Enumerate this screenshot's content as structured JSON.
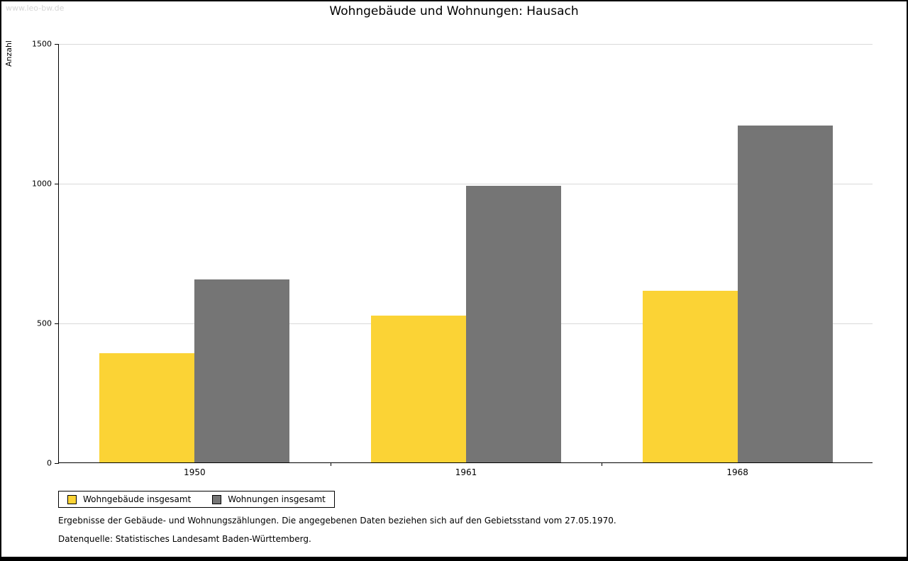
{
  "watermark": "www.leo-bw.de",
  "title": "Wohngebäude und Wohnungen: Hausach",
  "chart_data": {
    "type": "bar",
    "title": "Wohngebäude und Wohnungen: Hausach",
    "ylabel": "Anzahl",
    "xlabel": "",
    "ylim": [
      0,
      1500
    ],
    "yticks": [
      0,
      500,
      1000,
      1500
    ],
    "grid": true,
    "legend_position": "bottom-left",
    "categories": [
      "1950",
      "1961",
      "1968"
    ],
    "series": [
      {
        "name": "Wohngebäude insgesamt",
        "color": "#fbd335",
        "values": [
          390,
          525,
          615
        ]
      },
      {
        "name": "Wohnungen insgesamt",
        "color": "#757575",
        "values": [
          655,
          990,
          1205
        ]
      }
    ]
  },
  "footnotes": [
    "Ergebnisse der Gebäude- und Wohnungszählungen. Die angegebenen Daten beziehen sich auf den Gebietsstand vom 27.05.1970.",
    "Datenquelle: Statistisches Landesamt Baden-Württemberg."
  ]
}
